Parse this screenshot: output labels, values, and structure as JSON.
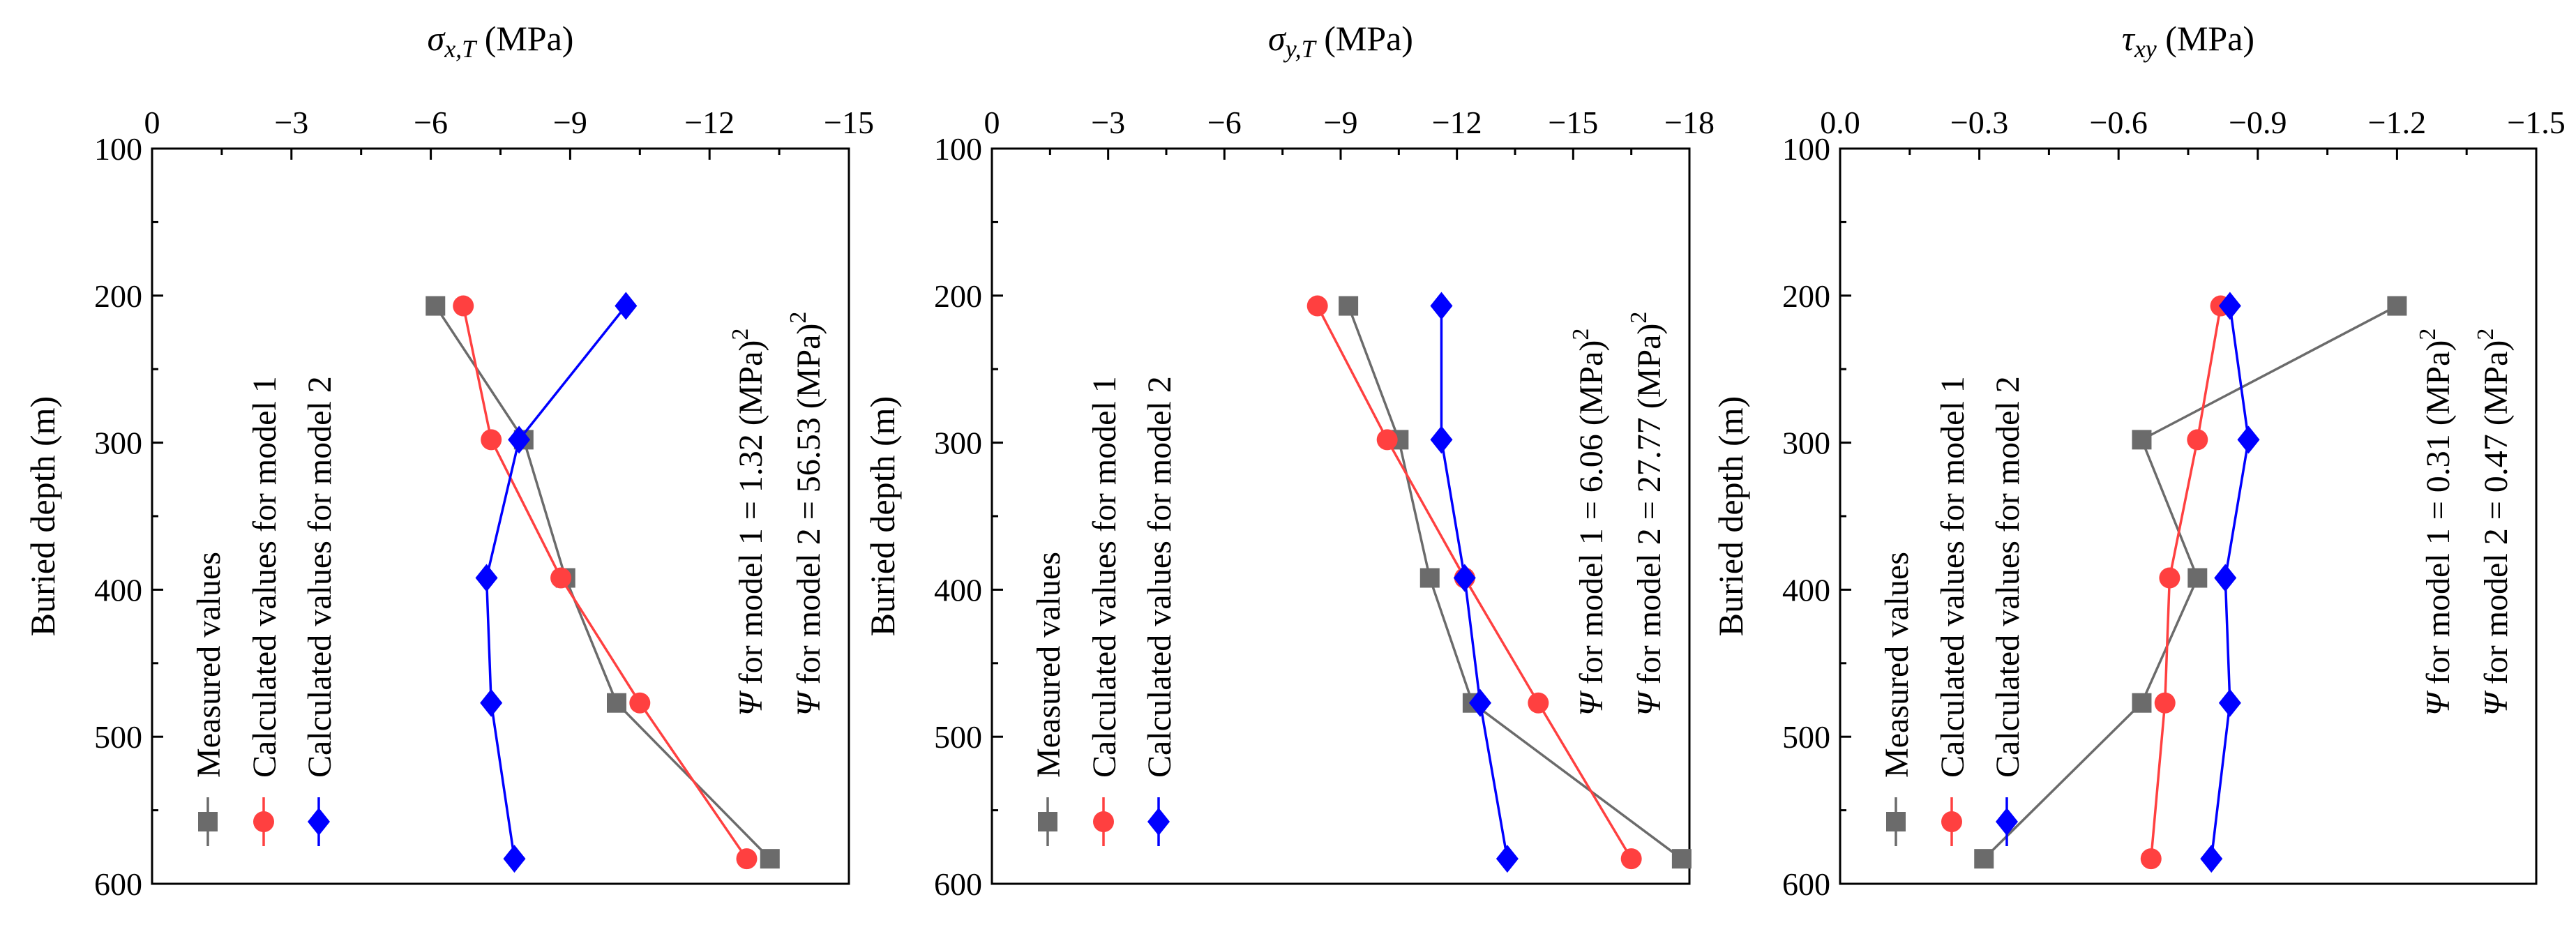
{
  "chart_data": [
    {
      "type": "line",
      "title_symbol": "σ",
      "title_sub": "x,T",
      "title_unit": " (MPa)",
      "xlabel": "σx,T (MPa)",
      "ylabel": "Buried depth (m)",
      "xlim": [
        0,
        -15
      ],
      "xticks": [
        0,
        -3,
        -6,
        -9,
        -12,
        -15
      ],
      "ylim": [
        100,
        600
      ],
      "yticks": [
        100,
        200,
        300,
        400,
        500,
        600
      ],
      "y": [
        207,
        298,
        392,
        477,
        583
      ],
      "series": [
        {
          "name": "Measured values",
          "marker": "square",
          "color": "#6b6b6b",
          "values": [
            -6.1,
            -8.0,
            -8.9,
            -10.0,
            -13.3
          ]
        },
        {
          "name": "Calculated values for model 1",
          "marker": "circle",
          "color": "#ff4040",
          "values": [
            -6.7,
            -7.3,
            -8.8,
            -10.5,
            -12.8
          ]
        },
        {
          "name": "Calculated values for model 2",
          "marker": "diamond",
          "color": "#0000ff",
          "values": [
            -10.2,
            -7.9,
            -7.2,
            -7.3,
            -7.8
          ]
        }
      ],
      "psi": [
        {
          "prefix": "Ψ",
          "text": " for model 1 = 1.32 (MPa)",
          "sup": "2"
        },
        {
          "prefix": "Ψ",
          "text": " for model 2 = 56.53 (MPa)",
          "sup": "2"
        }
      ]
    },
    {
      "type": "line",
      "title_symbol": "σ",
      "title_sub": "y,T",
      "title_unit": " (MPa)",
      "xlabel": "σy,T (MPa)",
      "ylabel": "Buried depth (m)",
      "xlim": [
        0,
        -18
      ],
      "xticks": [
        0,
        -3,
        -6,
        -9,
        -12,
        -15,
        -18
      ],
      "ylim": [
        100,
        600
      ],
      "yticks": [
        100,
        200,
        300,
        400,
        500,
        600
      ],
      "y": [
        207,
        298,
        392,
        477,
        583
      ],
      "series": [
        {
          "name": "Measured values",
          "marker": "square",
          "color": "#6b6b6b",
          "values": [
            -9.2,
            -10.5,
            -11.3,
            -12.4,
            -17.8
          ]
        },
        {
          "name": "Calculated values for model 1",
          "marker": "circle",
          "color": "#ff4040",
          "values": [
            -8.4,
            -10.2,
            -12.2,
            -14.1,
            -16.5
          ]
        },
        {
          "name": "Calculated values for model 2",
          "marker": "diamond",
          "color": "#0000ff",
          "values": [
            -11.6,
            -11.6,
            -12.2,
            -12.6,
            -13.3
          ]
        }
      ],
      "psi": [
        {
          "prefix": "Ψ",
          "text": " for model 1 = 6.06 (MPa)",
          "sup": "2"
        },
        {
          "prefix": "Ψ",
          "text": " for model 2 = 27.77 (MPa)",
          "sup": "2"
        }
      ]
    },
    {
      "type": "line",
      "title_symbol": "τ",
      "title_sub": "xy",
      "title_unit": " (MPa)",
      "xlabel": "τxy (MPa)",
      "ylabel": "Buried depth (m)",
      "xlim": [
        0,
        -1.5
      ],
      "xticks": [
        "0.0",
        "-0.3",
        "-0.6",
        "-0.9",
        "-1.2",
        "-1.5"
      ],
      "ylim": [
        100,
        600
      ],
      "yticks": [
        100,
        200,
        300,
        400,
        500,
        600
      ],
      "y": [
        207,
        298,
        392,
        477,
        583
      ],
      "series": [
        {
          "name": "Measured values",
          "marker": "square",
          "color": "#6b6b6b",
          "values": [
            -1.2,
            -0.65,
            -0.77,
            -0.65,
            -0.31
          ]
        },
        {
          "name": "Calculated values for model 1",
          "marker": "circle",
          "color": "#ff4040",
          "values": [
            -0.82,
            -0.77,
            -0.71,
            -0.7,
            -0.67
          ]
        },
        {
          "name": "Calculated values for model 2",
          "marker": "diamond",
          "color": "#0000ff",
          "values": [
            -0.84,
            -0.88,
            -0.83,
            -0.84,
            -0.8
          ]
        }
      ],
      "psi": [
        {
          "prefix": "Ψ",
          "text": " for model 1 = 0.31 (MPa)",
          "sup": "2"
        },
        {
          "prefix": "Ψ",
          "text": " for model 2 = 0.47 (MPa)",
          "sup": "2"
        }
      ]
    }
  ]
}
